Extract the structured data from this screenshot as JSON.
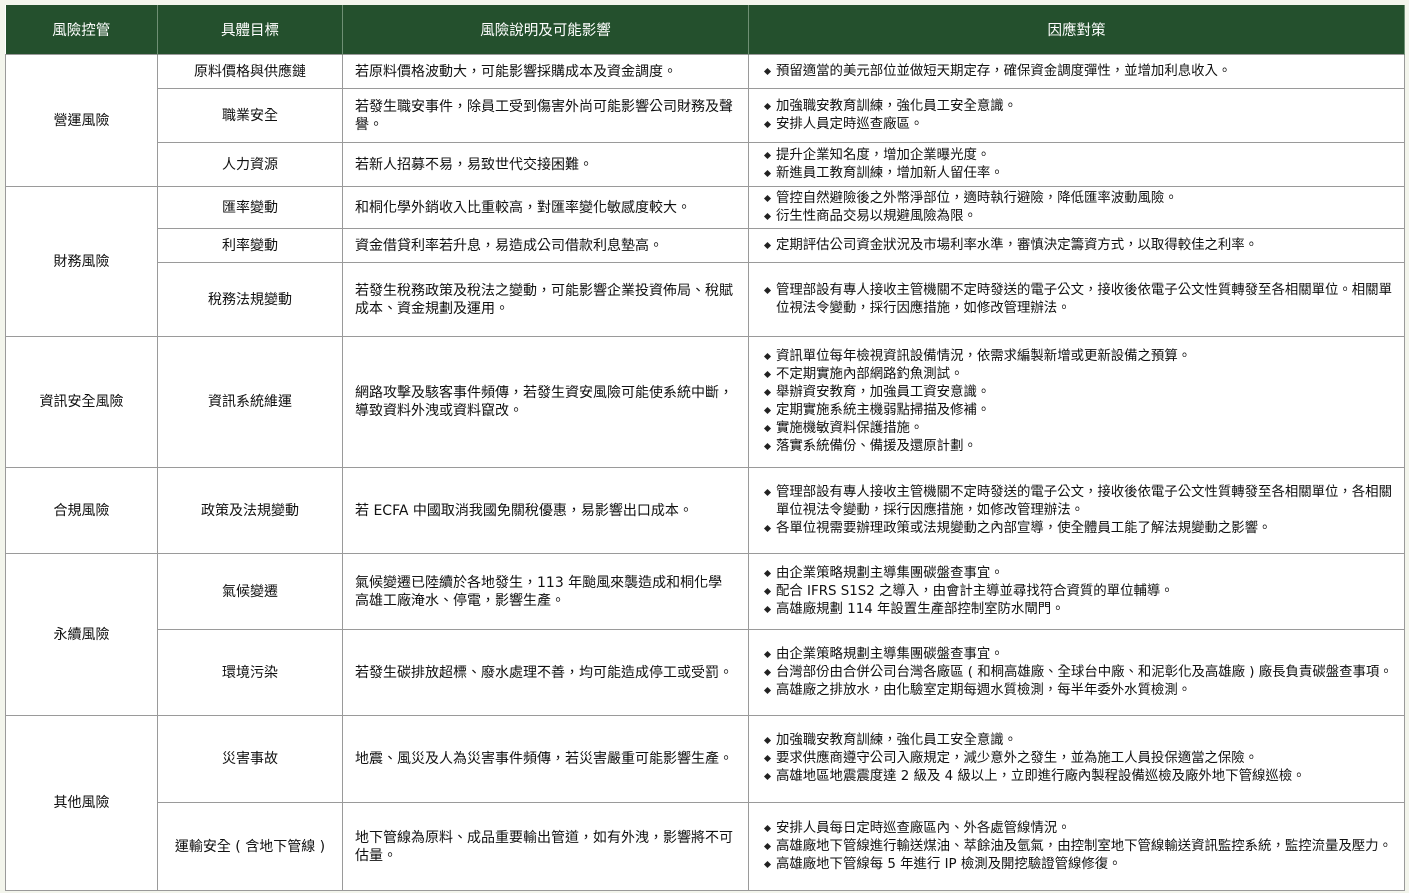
{
  "header": [
    "風險控管",
    "具體目標",
    "風險說明及可能影響",
    "因應對策"
  ],
  "groups": [
    {
      "category": "營運風險",
      "rows": [
        {
          "target": "原料價格與供應鏈",
          "description": "若原料價格波動大，可能影響採購成本及資金調度。",
          "measures": [
            "預留適當的美元部位並做短天期定存，確保資金調度彈性，並增加利息收入。"
          ]
        },
        {
          "target": "職業安全",
          "description": "若發生職安事件，除員工受到傷害外尚可能影響公司財務及聲譽。",
          "measures": [
            "加強職安教育訓練，強化員工安全意識。",
            "安排人員定時巡查廠區。"
          ]
        },
        {
          "target": "人力資源",
          "description": "若新人招募不易，易致世代交接困難。",
          "measures": [
            "提升企業知名度，增加企業曝光度。",
            "新進員工教育訓練，增加新人留任率。"
          ]
        }
      ]
    },
    {
      "category": "財務風險",
      "rows": [
        {
          "target": "匯率變動",
          "description": "和桐化學外銷收入比重較高，對匯率變化敏感度較大。",
          "measures": [
            "管控自然避險後之外幣淨部位，適時執行避險，降低匯率波動風險。",
            "衍生性商品交易以規避風險為限。"
          ]
        },
        {
          "target": "利率變動",
          "description": "資金借貸利率若升息，易造成公司借款利息墊高。",
          "measures": [
            "定期評估公司資金狀況及市場利率水準，審慎決定籌資方式，以取得較佳之利率。"
          ]
        },
        {
          "target": "稅務法規變動",
          "description": "若發生稅務政策及稅法之變動，可能影響企業投資佈局、稅賦成本、資金規劃及運用。",
          "measures": [
            "管理部設有專人接收主管機關不定時發送的電子公文，接收後依電子公文性質轉發至各相關單位。相關單位視法令變動，採行因應措施，如修改管理辦法。"
          ]
        }
      ]
    },
    {
      "category": "資訊安全風險",
      "rows": [
        {
          "target": "資訊系統維運",
          "description": "網路攻擊及駭客事件頻傳，若發生資安風險可能使系統中斷，導致資料外洩或資料竄改。",
          "measures": [
            "資訊單位每年檢視資訊設備情況，依需求編製新增或更新設備之預算。",
            "不定期實施內部網路釣魚測試。",
            "舉辦資安教育，加強員工資安意識。",
            "定期實施系統主機弱點掃描及修補。",
            "實施機敏資料保護措施。",
            "落實系統備份、備援及還原計劃。"
          ]
        }
      ]
    },
    {
      "category": "合規風險",
      "rows": [
        {
          "target": "政策及法規變動",
          "description": "若 ECFA 中國取消我國免關稅優惠，易影響出口成本。",
          "measures": [
            "管理部設有專人接收主管機關不定時發送的電子公文，接收後依電子公文性質轉發至各相關單位，各相關單位視法令變動，採行因應措施，如修改管理辦法。",
            "各單位視需要辦理政策或法規變動之內部宣導，使全體員工能了解法規變動之影響。"
          ]
        }
      ]
    },
    {
      "category": "永續風險",
      "rows": [
        {
          "target": "氣候變遷",
          "description": "氣候變遷已陸續於各地發生，113 年颱風來襲造成和桐化學高雄工廠淹水、停電，影響生產。",
          "measures": [
            "由企業策略規劃主導集團碳盤查事宜。",
            "配合 IFRS S1S2 之導入，由會計主導並尋找符合資質的單位輔導。",
            "高雄廠規劃 114 年設置生產部控制室防水閘門。"
          ]
        },
        {
          "target": "環境污染",
          "description": "若發生碳排放超標、廢水處理不善，均可能造成停工或受罰。",
          "measures": [
            "由企業策略規劃主導集團碳盤查事宜。",
            "台灣部份由合併公司台灣各廠區 ( 和桐高雄廠、全球台中廠、和泥彰化及高雄廠 ) 廠長負責碳盤查事項。",
            "高雄廠之排放水，由化驗室定期每週水質檢測，每半年委外水質檢測。"
          ]
        }
      ]
    },
    {
      "category": "其他風險",
      "rows": [
        {
          "target": "災害事故",
          "description": "地震、風災及人為災害事件頻傳，若災害嚴重可能影響生產。",
          "measures": [
            "加強職安教育訓練，強化員工安全意識。",
            "要求供應商遵守公司入廠規定，減少意外之發生，並為施工人員投保適當之保險。",
            "高雄地區地震震度達 2 級及 4 級以上，立即進行廠內製程設備巡檢及廠外地下管線巡檢。"
          ]
        },
        {
          "target": "運輸安全 ( 含地下管線 )",
          "description": "地下管線為原料、成品重要輸出管道，如有外洩，影響將不可估量。",
          "measures": [
            "安排人員每日定時巡查廠區內、外各處管線情況。",
            "高雄廠地下管線進行輸送煤油、萃餘油及氫氣，由控制室地下管線輸送資訊監控系統，監控流量及壓力。",
            "高雄廠地下管線每 5 年進行 IP 檢測及開挖驗證管線修復。"
          ]
        }
      ]
    }
  ]
}
